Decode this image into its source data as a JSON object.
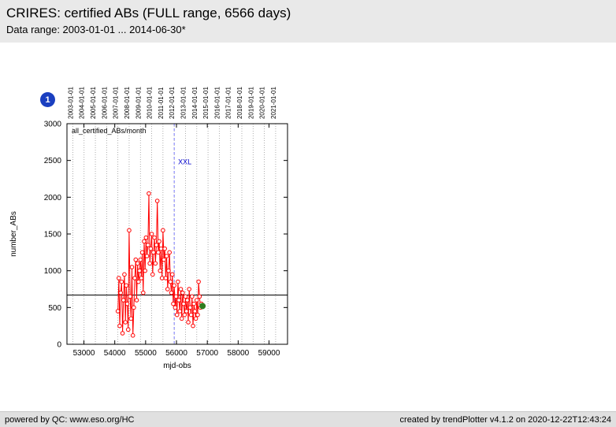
{
  "header": {
    "title": "CRIRES: certified ABs (FULL range, 6566 days)",
    "subtitle": "Data range: 2003-01-01 ... 2014-06-30*"
  },
  "badge": {
    "label": "1",
    "color": "#1a3fc0"
  },
  "footer": {
    "left": "powered by QC: www.eso.org/HC",
    "right": "created by trendPlotter v4.1.2 on 2020-12-22T12:43:24"
  },
  "chart_data": {
    "type": "line",
    "inner_label": "all_certified_ABs/month",
    "xlabel": "mjd-obs",
    "ylabel": "number_ABs",
    "xlim": [
      52450,
      59600
    ],
    "ylim": [
      0,
      3000
    ],
    "x_ticks": [
      53000,
      54000,
      55000,
      56000,
      57000,
      58000,
      59000
    ],
    "y_ticks": [
      0,
      500,
      1000,
      1500,
      2000,
      2500,
      3000
    ],
    "grid": "dotted-vertical-yearlines",
    "legend_position": "none",
    "colors": {
      "grid": "#999999",
      "box": "#000000"
    },
    "top_axis": {
      "labels": [
        "2003-01-01",
        "2004-01-01",
        "2005-01-01",
        "2006-01-01",
        "2007-01-01",
        "2008-01-01",
        "2009-01-01",
        "2010-01-01",
        "2011-01-01",
        "2012-01-01",
        "2013-01-01",
        "2014-01-01",
        "2015-01-01",
        "2016-01-01",
        "2017-01-01",
        "2018-01-01",
        "2019-01-01",
        "2020-01-01",
        "2021-01-01"
      ],
      "mjd": [
        52640,
        53005,
        53371,
        53736,
        54101,
        54466,
        54832,
        55197,
        55562,
        55927,
        56293,
        56658,
        57023,
        57388,
        57754,
        58119,
        58484,
        58849,
        59215
      ]
    },
    "reference_line_y": 670,
    "event_line": {
      "x": 55927,
      "label": "XXL",
      "label_y": 2450,
      "line_color": "#7777ff",
      "label_color": "#0000cc"
    },
    "series": [
      {
        "name": "all_certified_ABs_per_month",
        "color": "#ff0000",
        "marker": "open-circle",
        "x": [
          54101,
          54132,
          54160,
          54191,
          54221,
          54252,
          54282,
          54313,
          54344,
          54374,
          54405,
          54435,
          54466,
          54497,
          54526,
          54557,
          54587,
          54618,
          54648,
          54679,
          54710,
          54740,
          54771,
          54801,
          54832,
          54863,
          54891,
          54922,
          54952,
          54983,
          55013,
          55044,
          55075,
          55105,
          55136,
          55166,
          55197,
          55228,
          55256,
          55287,
          55317,
          55348,
          55378,
          55409,
          55440,
          55470,
          55501,
          55531,
          55562,
          55593,
          55621,
          55652,
          55682,
          55713,
          55743,
          55774,
          55805,
          55835,
          55866,
          55896,
          55927,
          55958,
          55987,
          56018,
          56048,
          56079,
          56109,
          56140,
          56171,
          56201,
          56232,
          56262,
          56293,
          56324,
          56352,
          56383,
          56413,
          56444,
          56474,
          56505,
          56536,
          56566,
          56597,
          56627,
          56658,
          56689,
          56717,
          56748,
          56778,
          56808
        ],
        "y": [
          450,
          900,
          250,
          700,
          850,
          150,
          600,
          950,
          300,
          800,
          550,
          200,
          1550,
          650,
          350,
          1050,
          120,
          500,
          900,
          1150,
          600,
          1100,
          850,
          1000,
          1150,
          900,
          1250,
          700,
          1400,
          1000,
          1450,
          1200,
          1350,
          2050,
          1100,
          1300,
          1500,
          950,
          1250,
          1450,
          1100,
          1350,
          1950,
          1250,
          1400,
          1000,
          1300,
          900,
          1550,
          1150,
          1300,
          900,
          1200,
          750,
          1000,
          1250,
          850,
          700,
          950,
          550,
          800,
          500,
          650,
          400,
          850,
          600,
          450,
          750,
          350,
          700,
          550,
          400,
          650,
          450,
          600,
          300,
          750,
          500,
          400,
          650,
          250,
          550,
          450,
          350,
          600,
          400,
          850,
          650,
          500,
          550
        ]
      },
      {
        "name": "latest_point",
        "color": "#2f7d1f",
        "marker": "filled-circle",
        "x": [
          56845
        ],
        "y": [
          520
        ]
      }
    ]
  }
}
